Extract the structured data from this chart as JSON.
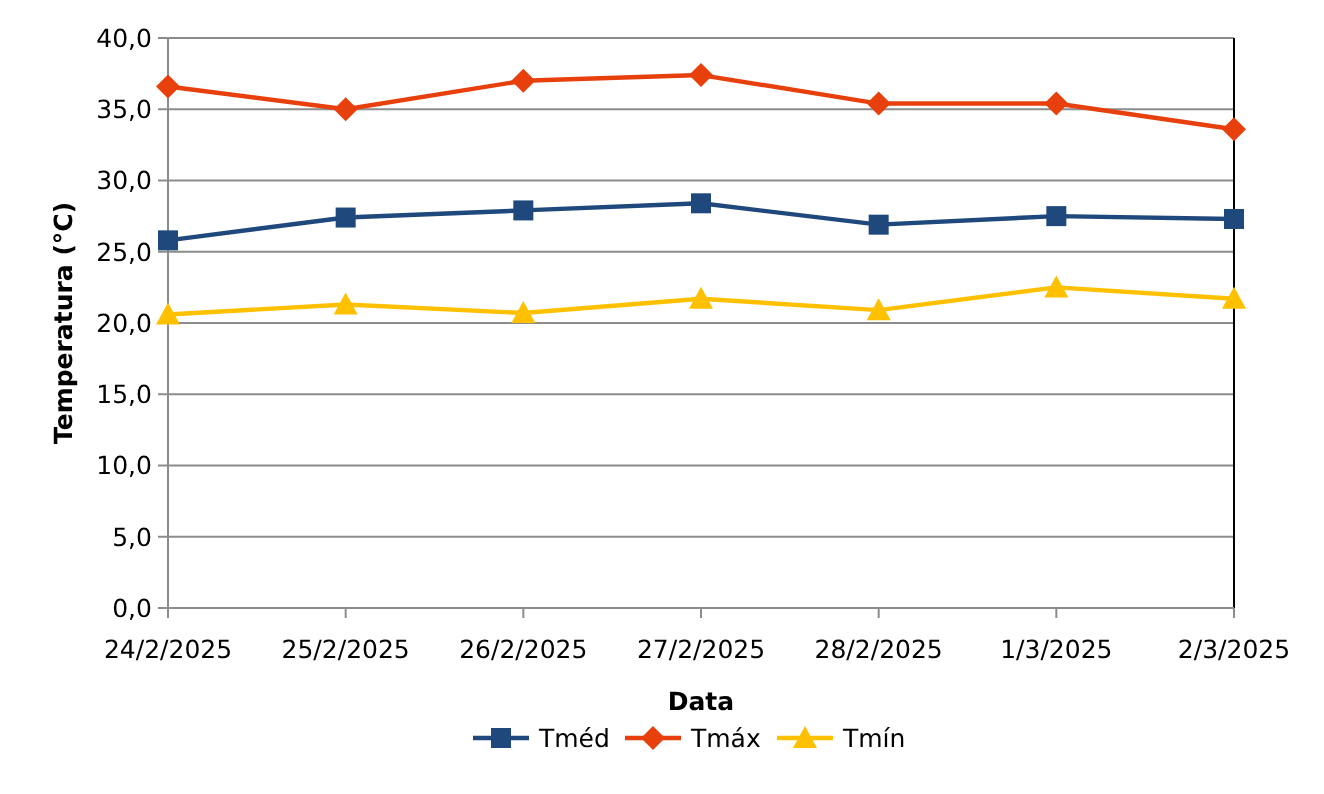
{
  "chart_data": {
    "type": "line",
    "xlabel": "Data",
    "ylabel": "Temperatura (°C)",
    "categories": [
      "24/2/2025",
      "25/2/2025",
      "26/2/2025",
      "27/2/2025",
      "28/2/2025",
      "1/3/2025",
      "2/3/2025"
    ],
    "series": [
      {
        "name": "Tméd",
        "color": "#1f497d",
        "marker": "square",
        "values": [
          25.8,
          27.4,
          27.9,
          28.4,
          26.9,
          27.5,
          27.3
        ]
      },
      {
        "name": "Tmáx",
        "color": "#e8400c",
        "marker": "diamond",
        "values": [
          36.6,
          35.0,
          37.0,
          37.4,
          35.4,
          35.4,
          33.6
        ]
      },
      {
        "name": "Tmín",
        "color": "#ffc000",
        "marker": "triangle",
        "values": [
          20.6,
          21.3,
          20.7,
          21.7,
          20.9,
          22.5,
          21.7
        ]
      }
    ],
    "ylim": [
      0,
      40
    ],
    "yticks": [
      {
        "value": 0,
        "label": "0,0"
      },
      {
        "value": 5,
        "label": "5,0"
      },
      {
        "value": 10,
        "label": "10,0"
      },
      {
        "value": 15,
        "label": "15,0"
      },
      {
        "value": 20,
        "label": "20,0"
      },
      {
        "value": 25,
        "label": "25,0"
      },
      {
        "value": 30,
        "label": "30,0"
      },
      {
        "value": 35,
        "label": "35,0"
      },
      {
        "value": 40,
        "label": "40,0"
      }
    ],
    "grid": "y",
    "legend": "bottom",
    "line_style": "solid"
  }
}
